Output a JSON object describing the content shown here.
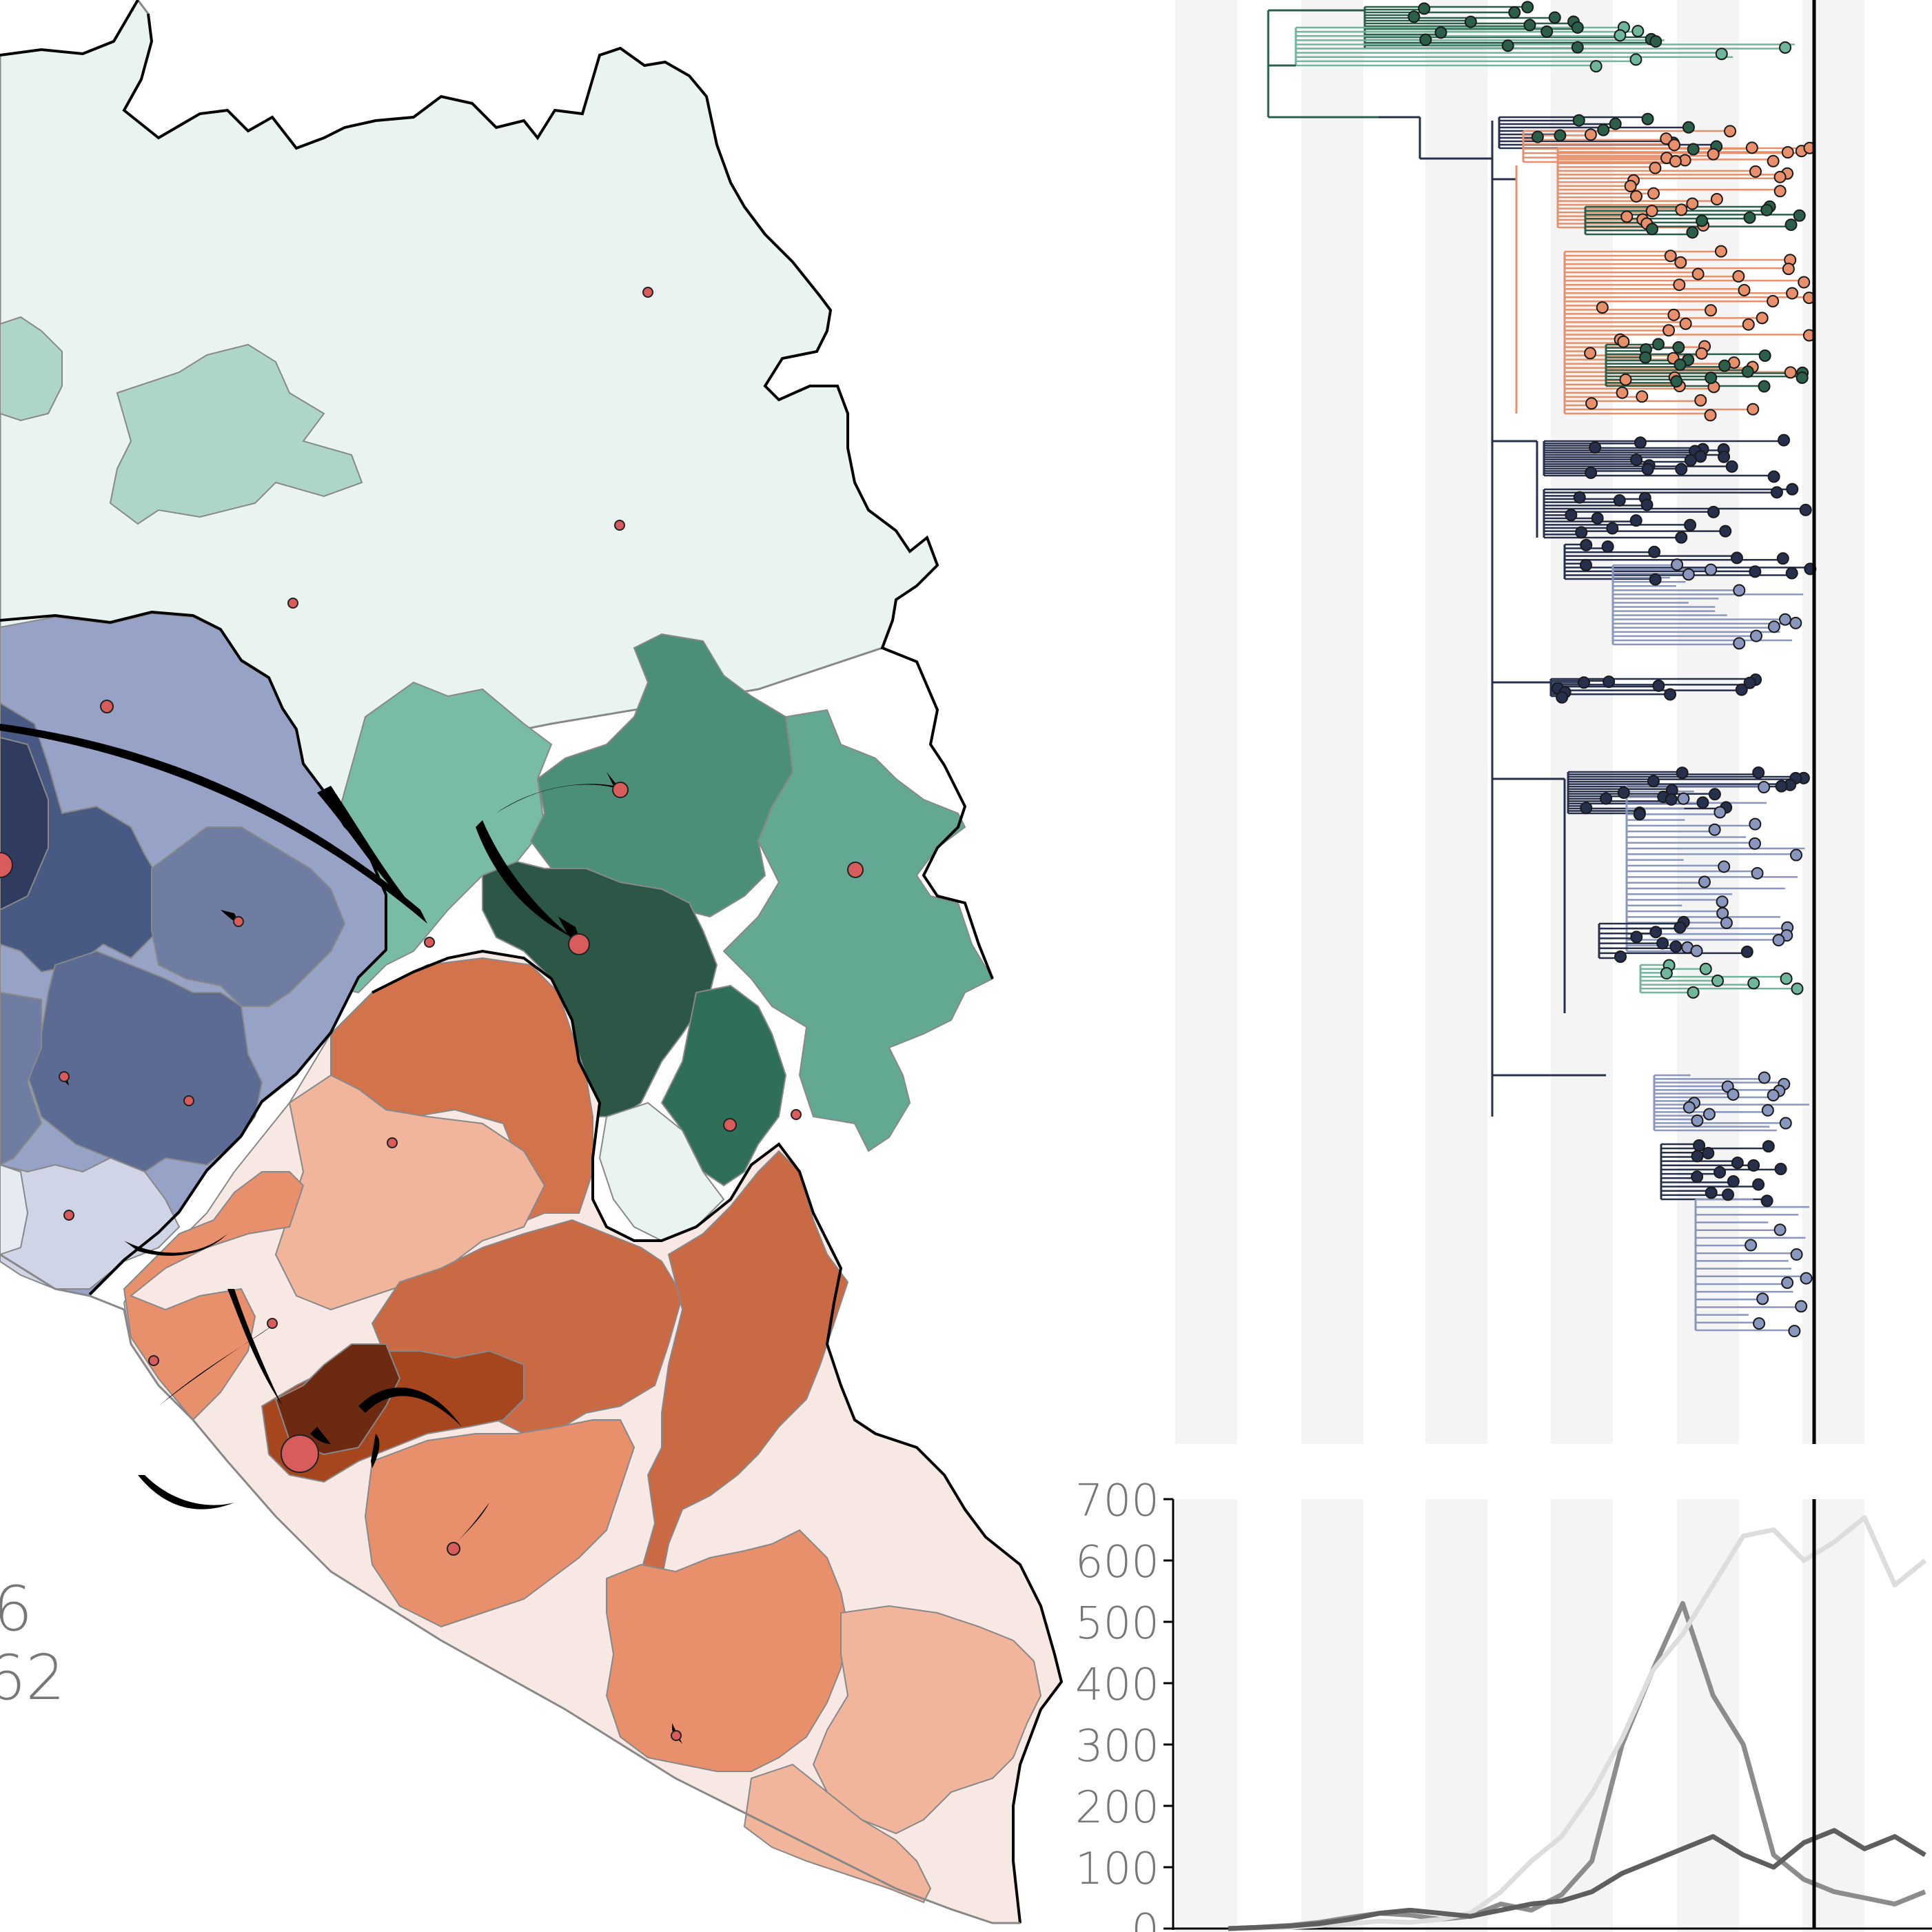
{
  "map": {
    "colors": {
      "green": [
        "#e9f4f0",
        "#aed6c8",
        "#78bca6",
        "#63a892",
        "#4b8f78",
        "#2f6f58",
        "#2c5746"
      ],
      "blue": [
        "#e6eaf3",
        "#cfd4e6",
        "#97a3c6",
        "#6f7da3",
        "#5c6b94",
        "#485a84",
        "#2f3b5f"
      ],
      "orange": [
        "#f8e8e3",
        "#f1b59c",
        "#e88f6b",
        "#d3734c",
        "#c96a45",
        "#a6461f",
        "#6d2a11"
      ],
      "locations": "#d85c5c"
    },
    "corner_text": [
      "6",
      "62"
    ]
  },
  "tree": {
    "lineages": [
      {
        "name": "green-dark",
        "color": "#2b5f49"
      },
      {
        "name": "green-light",
        "color": "#70b69a"
      },
      {
        "name": "orange",
        "color": "#e88f6b"
      },
      {
        "name": "navy",
        "color": "#26304d"
      },
      {
        "name": "steel",
        "color": "#8997bf"
      }
    ]
  },
  "chart_data": {
    "type": "line",
    "ylim": [
      0,
      700
    ],
    "yticks": [
      "0",
      "100",
      "200",
      "300",
      "400",
      "500",
      "600",
      "700"
    ],
    "x": [
      0,
      2,
      4,
      6,
      8,
      10,
      12,
      14,
      16,
      18,
      20,
      22,
      24,
      26,
      28,
      30,
      32,
      34,
      36,
      38,
      40,
      42,
      44,
      46
    ],
    "series": [
      {
        "color": "#8c8c8c",
        "values": [
          0,
          2,
          5,
          10,
          18,
          25,
          22,
          15,
          20,
          40,
          30,
          55,
          110,
          300,
          420,
          530,
          380,
          300,
          120,
          80,
          60,
          50,
          40,
          60
        ]
      },
      {
        "color": "#dddddd",
        "values": [
          0,
          1,
          2,
          5,
          8,
          12,
          10,
          15,
          25,
          60,
          110,
          150,
          220,
          310,
          420,
          480,
          560,
          640,
          650,
          600,
          630,
          670,
          560,
          600
        ]
      },
      {
        "color": "#5e5e5e",
        "values": [
          0,
          2,
          4,
          8,
          15,
          25,
          30,
          25,
          20,
          30,
          40,
          45,
          60,
          90,
          110,
          130,
          150,
          120,
          100,
          140,
          160,
          130,
          150,
          120
        ]
      }
    ],
    "vline_x": 36
  }
}
